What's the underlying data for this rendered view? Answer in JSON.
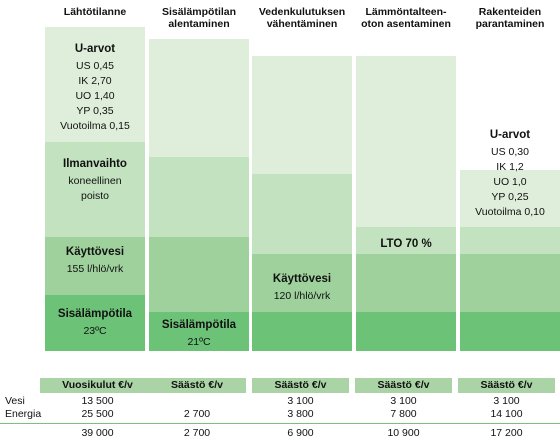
{
  "columns": [
    {
      "header": [
        "Lähtötilanne"
      ],
      "segments": [
        {
          "lines": [
            "U-arvot",
            "US 0,45",
            "IK 2,70",
            "UO 1,40",
            "YP 0,35",
            "Vuotoilma 0,15"
          ],
          "bold_first": true
        },
        {
          "lines": [
            "Ilmanvaihto",
            "koneellinen",
            "poisto"
          ],
          "bold_first": true
        },
        {
          "lines": [
            "Käyttövesi",
            "155 l/hlö/vrk"
          ],
          "bold_first": true
        },
        {
          "lines": [
            "Sisälämpötila",
            "23ºC"
          ],
          "bold_first": true
        }
      ]
    },
    {
      "header": [
        "Sisälämpötilan",
        "alentaminen"
      ],
      "segments": [
        {
          "lines": [],
          "bold_first": false
        },
        {
          "lines": [],
          "bold_first": false
        },
        {
          "lines": [],
          "bold_first": false
        },
        {
          "lines": [
            "Sisälämpötila",
            "21ºC"
          ],
          "bold_first": true
        }
      ]
    },
    {
      "header": [
        "Vedenkulutuksen",
        "vähentäminen"
      ],
      "segments": [
        {
          "lines": [],
          "bold_first": false
        },
        {
          "lines": [],
          "bold_first": false
        },
        {
          "lines": [
            "Käyttövesi",
            "120 l/hlö/vrk"
          ],
          "bold_first": true
        },
        {
          "lines": [],
          "bold_first": false
        }
      ]
    },
    {
      "header": [
        "Lämmöntalteen-",
        "oton asentaminen"
      ],
      "segments": [
        {
          "lines": [],
          "bold_first": false
        },
        {
          "lines": [
            "LTO 70 %"
          ],
          "bold_first": true
        },
        {
          "lines": [],
          "bold_first": false
        },
        {
          "lines": [],
          "bold_first": false
        }
      ]
    },
    {
      "header": [
        "Rakenteiden",
        "parantaminen"
      ],
      "segments": [
        {
          "lines": [
            "U-arvot",
            "US 0,30",
            "IK 1,2",
            "UO 1,0",
            "YP 0,25",
            "Vuotoilma 0,10"
          ],
          "bold_first": true
        },
        {
          "lines": [],
          "bold_first": false
        },
        {
          "lines": [],
          "bold_first": false
        },
        {
          "lines": [],
          "bold_first": false
        }
      ]
    }
  ],
  "colors": {
    "lightest": "#dfeeda",
    "light": "#c3e2bf",
    "medium": "#9fd19c",
    "dark": "#6cc277",
    "table_header": "#aad3a6"
  },
  "table": {
    "headers": [
      "Vuosikulut €/v",
      "Säästö €/v",
      "Säästö €/v",
      "Säästö €/v",
      "Säästö €/v"
    ],
    "rows": [
      {
        "label": "Vesi",
        "values": [
          "13 500",
          "",
          "3 100",
          "3 100",
          "3 100"
        ]
      },
      {
        "label": "Energia",
        "values": [
          "25 500",
          "2 700",
          "3 800",
          "7 800",
          "14 100"
        ]
      },
      {
        "label": "",
        "values": [
          "39 000",
          "2 700",
          "6 900",
          "10 900",
          "17 200"
        ]
      }
    ]
  }
}
